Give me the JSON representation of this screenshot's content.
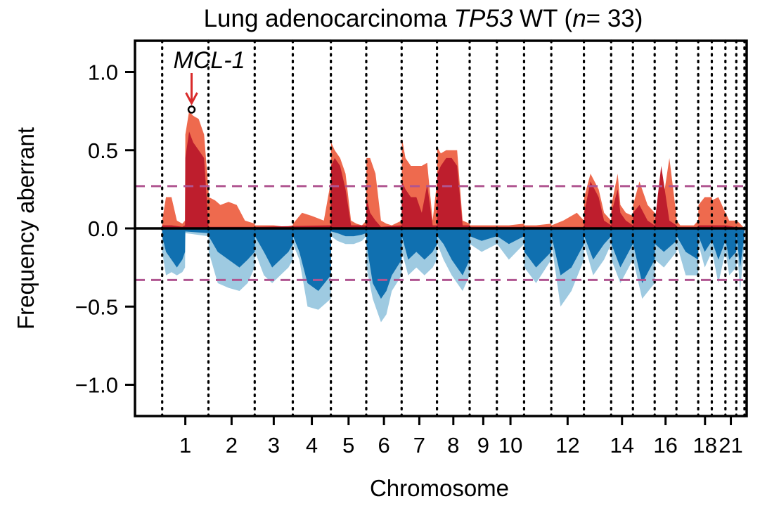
{
  "chart_data": {
    "type": "area",
    "title": {
      "prefix": "Lung adenocarcinoma ",
      "gene": "TP53",
      "middle": " WT (",
      "n_symbol": "n",
      "suffix": "= 33)"
    },
    "xlabel": "Chromosome",
    "ylabel": "Frequency aberrant",
    "ylim": [
      -1.2,
      1.2
    ],
    "y_ticks": [
      1.0,
      0.5,
      0.0,
      -0.5,
      -1.0
    ],
    "y_tick_labels": [
      "1.0",
      "0.5",
      "0.0",
      "−0.5",
      "−1.0"
    ],
    "x_range": [
      -0.24,
      22.24
    ],
    "chromosome_boundaries": [
      0.76,
      2.46,
      4.16,
      5.56,
      6.96,
      8.26,
      9.56,
      10.86,
      12.06,
      13.06,
      14.06,
      15.06,
      16.26,
      17.26,
      18.06,
      18.86,
      19.66,
      20.46,
      20.96,
      21.46,
      21.86,
      22.16
    ],
    "chromosome_labels": [
      {
        "label": "1",
        "x": 1.61
      },
      {
        "label": "2",
        "x": 3.31
      },
      {
        "label": "3",
        "x": 4.86
      },
      {
        "label": "4",
        "x": 6.26
      },
      {
        "label": "5",
        "x": 7.61
      },
      {
        "label": "6",
        "x": 8.91
      },
      {
        "label": "7",
        "x": 10.21
      },
      {
        "label": "8",
        "x": 11.46
      },
      {
        "label": "9",
        "x": 12.56
      },
      {
        "label": "10",
        "x": 13.56
      },
      {
        "label": "12",
        "x": 15.66
      },
      {
        "label": "14",
        "x": 17.66
      },
      {
        "label": "16",
        "x": 19.26
      },
      {
        "label": "18",
        "x": 20.71
      },
      {
        "label": "21",
        "x": 21.66
      }
    ],
    "threshold_upper": 0.27,
    "threshold_lower": -0.33,
    "annotation": {
      "label": "MCL-1",
      "x": 1.84,
      "y": 0.76
    },
    "series": [
      {
        "color": "#ee6a4e",
        "x": [
          0.76,
          0.9,
          1.1,
          1.3,
          1.5,
          1.6,
          1.61,
          1.75,
          1.9,
          2.1,
          2.3,
          2.46,
          2.47,
          2.7,
          2.9,
          3.2,
          3.5,
          3.8,
          4.16,
          4.17,
          4.4,
          4.86,
          5.3,
          5.56,
          5.57,
          5.9,
          6.26,
          6.7,
          6.96,
          6.97,
          7.1,
          7.3,
          7.5,
          7.7,
          7.9,
          8.1,
          8.26,
          8.27,
          8.4,
          8.6,
          8.8,
          9.0,
          9.2,
          9.56,
          9.57,
          9.7,
          9.9,
          10.1,
          10.3,
          10.5,
          10.7,
          10.86,
          10.87,
          11.0,
          11.2,
          11.4,
          11.6,
          11.8,
          12.06,
          12.07,
          12.5,
          13.06,
          13.07,
          13.5,
          14.06,
          14.07,
          14.5,
          15.06,
          15.07,
          15.5,
          16.0,
          16.26,
          16.27,
          16.5,
          16.8,
          17.0,
          17.26,
          17.27,
          17.5,
          17.6,
          17.8,
          18.06,
          18.07,
          18.3,
          18.6,
          18.86,
          18.87,
          19.1,
          19.4,
          19.66,
          19.67,
          19.8,
          19.95,
          20.1,
          20.3,
          20.46,
          20.47,
          20.7,
          20.96,
          20.97,
          21.2,
          21.46,
          21.47,
          21.6,
          21.86,
          21.87,
          22.0,
          22.16
        ],
        "y": [
          0.05,
          0.2,
          0.2,
          0.05,
          0.03,
          0.05,
          0.6,
          0.75,
          0.72,
          0.7,
          0.6,
          0.25,
          0.2,
          0.18,
          0.15,
          0.17,
          0.15,
          0.05,
          0.03,
          0.02,
          0.02,
          0.02,
          0.01,
          0.02,
          0.03,
          0.1,
          0.08,
          0.05,
          0.3,
          0.55,
          0.5,
          0.45,
          0.35,
          0.05,
          0.03,
          0.02,
          0.05,
          0.45,
          0.45,
          0.35,
          0.05,
          0.03,
          0.02,
          0.05,
          0.58,
          0.45,
          0.4,
          0.4,
          0.4,
          0.42,
          0.05,
          0.3,
          0.52,
          0.48,
          0.5,
          0.5,
          0.5,
          0.05,
          0.03,
          0.02,
          0.02,
          0.02,
          0.02,
          0.02,
          0.03,
          0.02,
          0.02,
          0.03,
          0.02,
          0.05,
          0.1,
          0.05,
          0.2,
          0.35,
          0.25,
          0.1,
          0.05,
          0.15,
          0.35,
          0.15,
          0.1,
          0.08,
          0.15,
          0.3,
          0.15,
          0.1,
          0.05,
          0.1,
          0.45,
          0.08,
          0.05,
          0.02,
          0.02,
          0.02,
          0.02,
          0.05,
          0.15,
          0.2,
          0.2,
          0.18,
          0.2,
          0.1,
          0.1,
          0.05,
          0.05,
          0.05,
          0.03,
          0.0
        ]
      },
      {
        "color": "#be1e2d",
        "x": [
          0.76,
          1.1,
          1.5,
          1.6,
          1.61,
          1.75,
          1.9,
          2.1,
          2.3,
          2.46,
          2.47,
          3.5,
          4.16,
          4.17,
          6.96,
          6.97,
          7.1,
          7.3,
          7.5,
          7.7,
          8.26,
          8.27,
          8.4,
          8.6,
          8.8,
          9.56,
          9.57,
          9.7,
          9.9,
          10.1,
          10.3,
          10.5,
          10.7,
          10.86,
          10.87,
          11.0,
          11.2,
          11.4,
          11.6,
          11.8,
          12.06,
          12.07,
          13.06,
          13.07,
          14.06,
          14.07,
          15.06,
          15.07,
          16.26,
          16.27,
          16.5,
          16.8,
          17.0,
          17.26,
          17.27,
          17.5,
          17.6,
          17.8,
          18.06,
          18.07,
          18.3,
          18.6,
          18.86,
          18.87,
          19.1,
          19.4,
          19.66,
          19.67,
          20.46,
          20.47,
          20.7,
          20.96,
          20.97,
          21.2,
          21.46,
          21.47,
          22.16
        ],
        "y": [
          0.02,
          0.02,
          0.01,
          0.02,
          0.45,
          0.62,
          0.55,
          0.5,
          0.45,
          0.02,
          0.01,
          0.01,
          0.01,
          0.01,
          0.02,
          0.4,
          0.45,
          0.4,
          0.25,
          0.02,
          0.02,
          0.2,
          0.1,
          0.05,
          0.01,
          0.02,
          0.3,
          0.25,
          0.2,
          0.2,
          0.1,
          0.28,
          0.02,
          0.02,
          0.35,
          0.4,
          0.45,
          0.45,
          0.4,
          0.02,
          0.02,
          0.01,
          0.01,
          0.01,
          0.01,
          0.01,
          0.01,
          0.01,
          0.01,
          0.1,
          0.3,
          0.2,
          0.05,
          0.02,
          0.1,
          0.25,
          0.1,
          0.05,
          0.02,
          0.1,
          0.15,
          0.05,
          0.02,
          0.05,
          0.4,
          0.05,
          0.02,
          0.01,
          0.01,
          0.02,
          0.02,
          0.02,
          0.02,
          0.02,
          0.02,
          0.02,
          0.0
        ]
      },
      {
        "color": "#9ecae1",
        "x": [
          0.76,
          0.9,
          1.1,
          1.3,
          1.5,
          1.6,
          1.61,
          2.46,
          2.47,
          2.8,
          3.2,
          3.6,
          3.9,
          4.16,
          4.17,
          4.5,
          4.8,
          5.1,
          5.4,
          5.56,
          5.57,
          5.8,
          6.1,
          6.5,
          6.96,
          6.97,
          7.2,
          7.5,
          7.8,
          8.1,
          8.26,
          8.27,
          8.5,
          8.8,
          9.0,
          9.2,
          9.56,
          9.57,
          9.8,
          10.1,
          10.4,
          10.7,
          10.86,
          10.87,
          11.1,
          11.4,
          11.6,
          11.8,
          12.06,
          12.07,
          12.5,
          13.06,
          13.07,
          13.5,
          14.06,
          14.07,
          14.5,
          15.06,
          15.07,
          15.4,
          15.8,
          16.26,
          16.27,
          16.6,
          17.0,
          17.26,
          17.27,
          17.6,
          18.06,
          18.07,
          18.4,
          18.86,
          18.87,
          19.2,
          19.66,
          19.67,
          20.0,
          20.46,
          20.47,
          20.7,
          20.96,
          20.97,
          21.2,
          21.46,
          21.47,
          21.6,
          21.86,
          21.87,
          22.0,
          22.16
        ],
        "y": [
          -0.15,
          -0.3,
          -0.28,
          -0.3,
          -0.28,
          -0.25,
          -0.03,
          -0.05,
          -0.15,
          -0.35,
          -0.38,
          -0.4,
          -0.35,
          -0.25,
          -0.15,
          -0.3,
          -0.35,
          -0.3,
          -0.25,
          -0.2,
          -0.1,
          -0.2,
          -0.5,
          -0.52,
          -0.45,
          -0.05,
          -0.08,
          -0.1,
          -0.1,
          -0.08,
          -0.05,
          -0.25,
          -0.45,
          -0.6,
          -0.55,
          -0.4,
          -0.3,
          -0.15,
          -0.3,
          -0.25,
          -0.3,
          -0.25,
          -0.2,
          -0.1,
          -0.2,
          -0.3,
          -0.35,
          -0.4,
          -0.3,
          -0.1,
          -0.15,
          -0.1,
          -0.1,
          -0.2,
          -0.1,
          -0.25,
          -0.35,
          -0.2,
          -0.1,
          -0.5,
          -0.4,
          -0.2,
          -0.1,
          -0.3,
          -0.2,
          -0.1,
          -0.2,
          -0.35,
          -0.2,
          -0.2,
          -0.45,
          -0.35,
          -0.2,
          -0.25,
          -0.15,
          -0.1,
          -0.3,
          -0.3,
          -0.1,
          -0.25,
          -0.15,
          -0.15,
          -0.35,
          -0.15,
          -0.15,
          -0.3,
          -0.25,
          -0.1,
          -0.4,
          -0.1
        ]
      },
      {
        "color": "#1070b0",
        "x": [
          0.76,
          0.9,
          1.1,
          1.3,
          1.5,
          1.6,
          1.61,
          2.46,
          2.47,
          2.8,
          3.2,
          3.6,
          3.9,
          4.16,
          4.17,
          4.5,
          4.8,
          5.1,
          5.4,
          5.56,
          5.57,
          5.8,
          6.1,
          6.5,
          6.96,
          6.97,
          7.2,
          7.5,
          7.8,
          8.1,
          8.26,
          8.27,
          8.5,
          8.8,
          9.0,
          9.2,
          9.56,
          9.57,
          9.8,
          10.1,
          10.4,
          10.7,
          10.86,
          10.87,
          11.1,
          11.4,
          11.6,
          11.8,
          12.06,
          12.07,
          12.5,
          13.06,
          13.07,
          13.5,
          14.06,
          14.07,
          14.5,
          15.06,
          15.07,
          15.4,
          15.8,
          16.26,
          16.27,
          16.6,
          17.0,
          17.26,
          17.27,
          17.6,
          18.06,
          18.07,
          18.4,
          18.86,
          18.87,
          19.2,
          19.66,
          19.67,
          20.0,
          20.46,
          20.47,
          20.7,
          20.96,
          20.97,
          21.2,
          21.46,
          21.47,
          21.6,
          21.86,
          21.87,
          22.0,
          22.16
        ],
        "y": [
          -0.05,
          -0.15,
          -0.2,
          -0.25,
          -0.2,
          -0.15,
          -0.02,
          -0.03,
          -0.05,
          -0.15,
          -0.2,
          -0.25,
          -0.2,
          -0.15,
          -0.05,
          -0.15,
          -0.25,
          -0.2,
          -0.15,
          -0.1,
          -0.05,
          -0.15,
          -0.35,
          -0.4,
          -0.3,
          -0.02,
          -0.03,
          -0.05,
          -0.05,
          -0.04,
          -0.03,
          -0.1,
          -0.35,
          -0.45,
          -0.4,
          -0.3,
          -0.2,
          -0.05,
          -0.2,
          -0.15,
          -0.2,
          -0.15,
          -0.1,
          -0.05,
          -0.1,
          -0.2,
          -0.25,
          -0.3,
          -0.2,
          -0.05,
          -0.08,
          -0.05,
          -0.05,
          -0.1,
          -0.05,
          -0.15,
          -0.25,
          -0.15,
          -0.05,
          -0.3,
          -0.25,
          -0.1,
          -0.05,
          -0.2,
          -0.1,
          -0.05,
          -0.1,
          -0.25,
          -0.1,
          -0.1,
          -0.35,
          -0.2,
          -0.1,
          -0.15,
          -0.08,
          -0.05,
          -0.15,
          -0.2,
          -0.05,
          -0.15,
          -0.08,
          -0.08,
          -0.2,
          -0.08,
          -0.08,
          -0.2,
          -0.15,
          -0.05,
          -0.25,
          -0.05
        ]
      }
    ],
    "colors": {
      "gain_light": "#ee6a4e",
      "gain_dark": "#be1e2d",
      "loss_light": "#9ecae1",
      "loss_dark": "#1070b0",
      "threshold": "#b05590",
      "annotation_arrow": "#d92b2b"
    }
  }
}
